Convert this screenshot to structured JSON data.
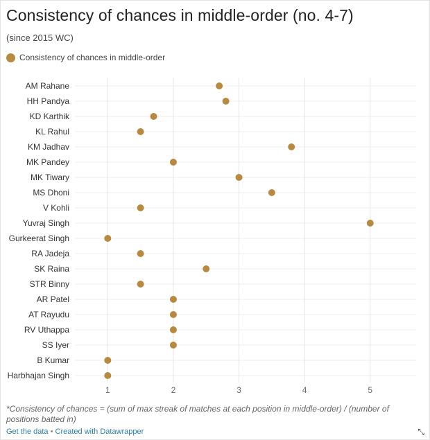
{
  "title": "Consistency of chances in middle-order (no. 4-7)",
  "subtitle": "(since 2015 WC)",
  "legend": {
    "label": "Consistency of chances in middle-order",
    "color": "#b88a41"
  },
  "footnote": "*Consistency of chances = (sum of max streak of matches at each position in middle-order) / (number of positions batted in)",
  "credits": {
    "get_data": "Get the data",
    "separator": "•",
    "created_with": "Created with Datawrapper"
  },
  "icons": {
    "resize": "resize-arrows-icon"
  },
  "chart_data": {
    "type": "scatter",
    "orientation": "horizontal-dot",
    "series": [
      {
        "name": "Consistency of chances in middle-order",
        "color": "#b88a41",
        "categories": [
          "AM Rahane",
          "HH Pandya",
          "KD Karthik",
          "KL Rahul",
          "KM Jadhav",
          "MK Pandey",
          "MK Tiwary",
          "MS Dhoni",
          "V Kohli",
          "Yuvraj Singh",
          "Gurkeerat Singh",
          "RA Jadeja",
          "SK Raina",
          "STR Binny",
          "AR Patel",
          "AT Rayudu",
          "RV Uthappa",
          "SS Iyer",
          "B Kumar",
          "Harbhajan Singh"
        ],
        "values": [
          2.7,
          2.8,
          1.7,
          1.5,
          3.8,
          2.0,
          3.0,
          3.5,
          1.5,
          5.0,
          1.0,
          1.5,
          2.5,
          1.5,
          2.0,
          2.0,
          2.0,
          2.0,
          1.0,
          1.0
        ]
      }
    ],
    "x_ticks": [
      "1",
      "2",
      "3",
      "4",
      "5"
    ],
    "xlim": [
      0.5,
      5.7
    ],
    "grid": true,
    "legend_position": "top-left"
  }
}
